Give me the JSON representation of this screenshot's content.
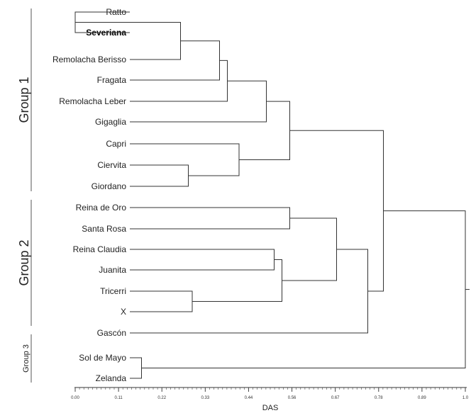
{
  "groups": [
    {
      "label": "Group 1"
    },
    {
      "label": "Group 2"
    },
    {
      "label": "Group 3"
    }
  ],
  "leaves": [
    {
      "name": "Ratto",
      "bold": false
    },
    {
      "name": "Severiana",
      "bold": true
    },
    {
      "name": "Remolacha Berisso",
      "bold": false
    },
    {
      "name": "Fragata",
      "bold": false
    },
    {
      "name": "Remolacha Leber",
      "bold": false
    },
    {
      "name": "Gigaglia",
      "bold": false
    },
    {
      "name": "Capri",
      "bold": false
    },
    {
      "name": "Ciervita",
      "bold": false
    },
    {
      "name": "Giordano",
      "bold": false
    },
    {
      "name": "Reina de Oro",
      "bold": false
    },
    {
      "name": "Santa Rosa",
      "bold": false
    },
    {
      "name": "Reina Claudia",
      "bold": false
    },
    {
      "name": "Juanita",
      "bold": false
    },
    {
      "name": "Tricerri",
      "bold": false
    },
    {
      "name": "X",
      "bold": false
    },
    {
      "name": "Gascón",
      "bold": false
    },
    {
      "name": "Sol de Mayo",
      "bold": false
    },
    {
      "name": "Zelanda",
      "bold": false
    }
  ],
  "merges": [
    {
      "a": "L0",
      "b": "L1",
      "height": 0.0
    },
    {
      "a": "N0",
      "b": "L2",
      "height": 0.27
    },
    {
      "a": "N1",
      "b": "L3",
      "height": 0.37
    },
    {
      "a": "N2",
      "b": "L4",
      "height": 0.39
    },
    {
      "a": "N3",
      "b": "L5",
      "height": 0.49
    },
    {
      "a": "L7",
      "b": "L8",
      "height": 0.29
    },
    {
      "a": "L6",
      "b": "N5",
      "height": 0.42
    },
    {
      "a": "N4",
      "b": "N6",
      "height": 0.55
    },
    {
      "a": "L9",
      "b": "L10",
      "height": 0.55
    },
    {
      "a": "L11",
      "b": "L12",
      "height": 0.51
    },
    {
      "a": "L13",
      "b": "L14",
      "height": 0.3
    },
    {
      "a": "N9",
      "b": "N10",
      "height": 0.53
    },
    {
      "a": "N8",
      "b": "N11",
      "height": 0.67
    },
    {
      "a": "N12",
      "b": "L15",
      "height": 0.75
    },
    {
      "a": "N7",
      "b": "N13",
      "height": 0.79
    },
    {
      "a": "L16",
      "b": "L17",
      "height": 0.17
    },
    {
      "a": "N14",
      "b": "N15",
      "height": 1.0
    }
  ],
  "axis": {
    "title": "DAS",
    "min": 0,
    "max": 1.0,
    "tick_labels": [
      "0.00",
      "0.11",
      "0.22",
      "0.33",
      "0.44",
      "0.56",
      "0.67",
      "0.78",
      "0.89",
      "1.0"
    ]
  }
}
